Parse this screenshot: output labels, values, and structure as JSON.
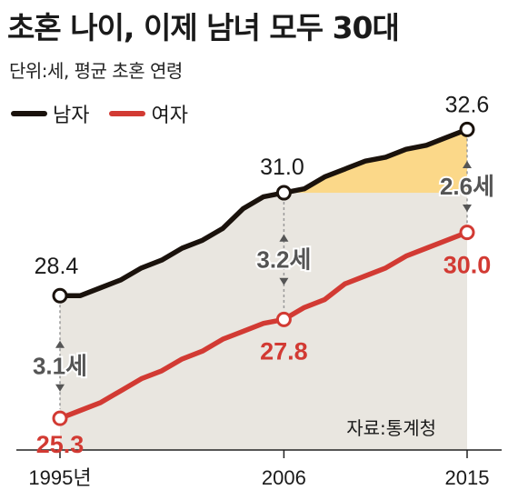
{
  "title": "초혼 나이, 이제 남녀 모두 30대",
  "unit_note": "단위:세, 평균 초혼 연령",
  "source": "자료:통계청",
  "colors": {
    "men": "#1a120c",
    "women": "#d23a33",
    "gap_fill": "#fbd889",
    "base_fill": "#e9e6e0",
    "gap_label": "#555555",
    "axis": "#222222"
  },
  "legend": [
    {
      "name": "남자",
      "color": "#1a120c"
    },
    {
      "name": "여자",
      "color": "#d23a33"
    }
  ],
  "chart_data": {
    "type": "line",
    "x_labels": [
      "1995년",
      "2006",
      "2015"
    ],
    "series": [
      {
        "name": "남자",
        "x": [
          1995,
          1996,
          1997,
          1998,
          1999,
          2000,
          2001,
          2002,
          2003,
          2004,
          2005,
          2006,
          2007,
          2008,
          2009,
          2010,
          2011,
          2012,
          2013,
          2014,
          2015
        ],
        "values": [
          28.4,
          28.4,
          28.6,
          28.8,
          29.1,
          29.3,
          29.6,
          29.8,
          30.1,
          30.6,
          30.9,
          31.0,
          31.1,
          31.4,
          31.6,
          31.8,
          31.9,
          32.1,
          32.2,
          32.4,
          32.6
        ]
      },
      {
        "name": "여자",
        "x": [
          1995,
          1996,
          1997,
          1998,
          1999,
          2000,
          2001,
          2002,
          2003,
          2004,
          2005,
          2006,
          2007,
          2008,
          2009,
          2010,
          2011,
          2012,
          2013,
          2014,
          2015
        ],
        "values": [
          25.3,
          25.5,
          25.7,
          26.0,
          26.3,
          26.5,
          26.8,
          27.0,
          27.3,
          27.5,
          27.7,
          27.8,
          28.1,
          28.3,
          28.7,
          28.9,
          29.1,
          29.4,
          29.6,
          29.8,
          30.0
        ]
      }
    ],
    "labeled_points": [
      {
        "series": "남자",
        "x": 1995,
        "label": "28.4"
      },
      {
        "series": "남자",
        "x": 2006,
        "label": "31.0"
      },
      {
        "series": "남자",
        "x": 2015,
        "label": "32.6"
      },
      {
        "series": "여자",
        "x": 1995,
        "label": "25.3"
      },
      {
        "series": "여자",
        "x": 2006,
        "label": "27.8"
      },
      {
        "series": "여자",
        "x": 2015,
        "label": "30.0"
      }
    ],
    "gaps": [
      {
        "x": 1995,
        "label": "3.1세"
      },
      {
        "x": 2006,
        "label": "3.2세"
      },
      {
        "x": 2015,
        "label": "2.6세"
      }
    ],
    "ylim": [
      24.5,
      33.0
    ]
  }
}
